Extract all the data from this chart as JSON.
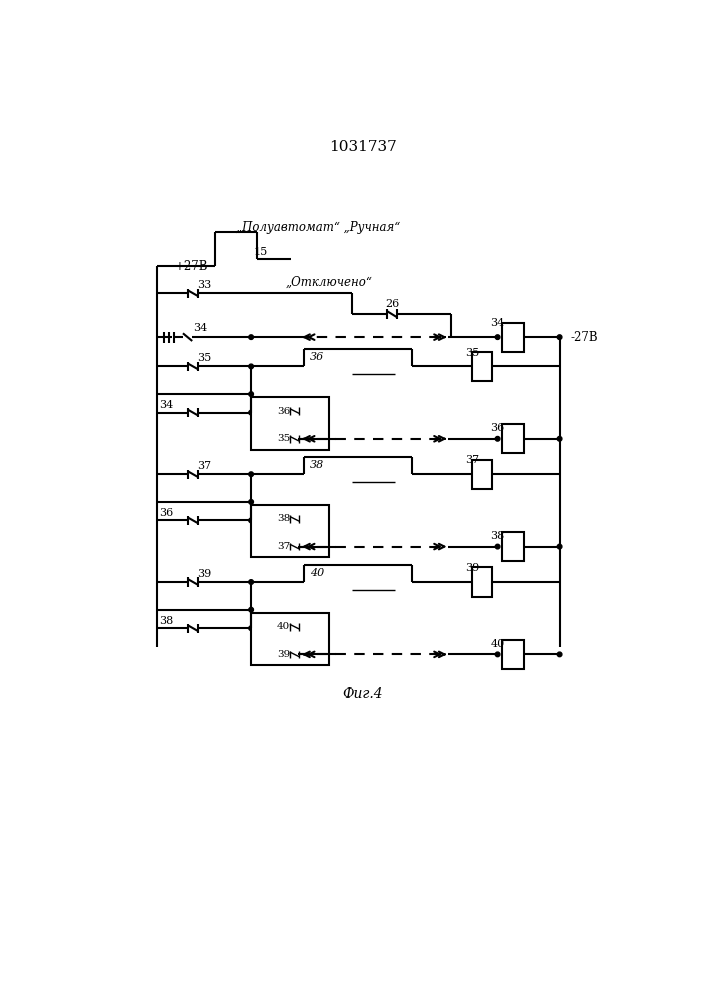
{
  "title": "1031737",
  "background": "#ffffff",
  "lw": 1.5,
  "lw_thin": 1.0,
  "label_polуavtomat": "„Полуавтомат“ „Ручная“",
  "label_plus27v": "+27В",
  "label_minus27v": "-27В",
  "label_otkl": "„Отключено“",
  "label_fig": "Фиг.4"
}
